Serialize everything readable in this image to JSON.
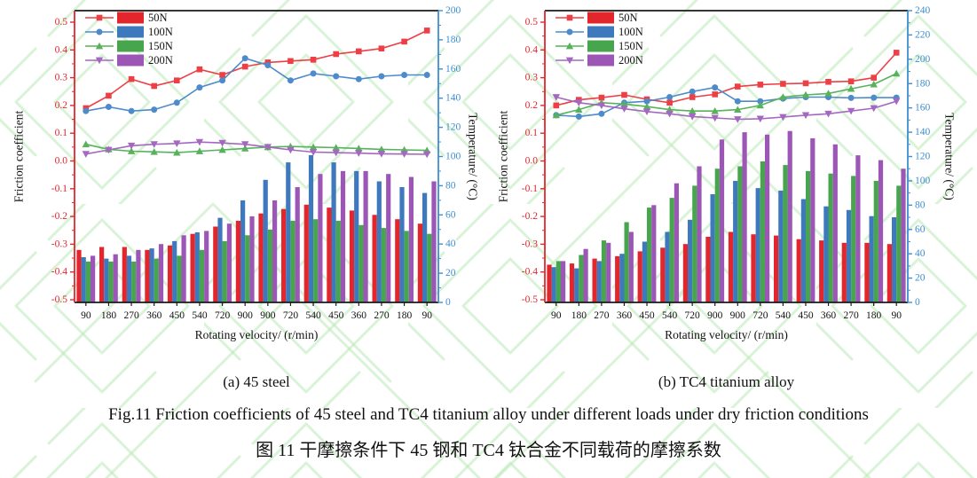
{
  "figure": {
    "panel_a_caption": "(a) 45 steel",
    "panel_b_caption": "(b) TC4 titanium alloy",
    "caption_english": "Fig.11 Friction coefficients of 45 steel and TC4 titanium alloy under different loads under dry friction conditions",
    "caption_chinese": "图 11  干摩擦条件下 45 钢和 TC4 钛合金不同载荷的摩擦系数"
  },
  "colors": {
    "load_50N": "#e2262c",
    "load_100N": "#3e79bd",
    "load_150N": "#47a64d",
    "load_200N": "#9c57b6",
    "line_50N": "#ed3f45",
    "line_100N": "#4e8bcb",
    "line_150N": "#57b25c",
    "line_200N": "#a468c0",
    "left_axis": "#e2262c",
    "right_axis": "#3e8ed0",
    "frame": "#1a1a1a",
    "tick_text": "#111111",
    "watermark": "#b7e9b2"
  },
  "chart_data": [
    {
      "id": "45-steel",
      "type": "line+bar",
      "panel_label": "(a) 45 steel",
      "xlabel": "Rotating velocity/ (r/min)",
      "ylabel_left": "Friction coefficient",
      "ylabel_right": "Temperature/ (°C)",
      "x_categories": [
        "90",
        "180",
        "270",
        "360",
        "450",
        "540",
        "720",
        "900",
        "900",
        "720",
        "540",
        "450",
        "360",
        "270",
        "180",
        "90"
      ],
      "ylim_left": [
        -0.5,
        0.5
      ],
      "yticks_left": [
        "0.5",
        "0.4",
        "0.3",
        "0.2",
        "0.1",
        "0.0",
        "-0.1",
        "-0.2",
        "-0.3",
        "-0.4",
        "-0.5"
      ],
      "ylim_right": [
        0,
        200
      ],
      "yticks_right": [
        0,
        20,
        40,
        60,
        80,
        100,
        120,
        140,
        160,
        180,
        200
      ],
      "legend": [
        "50N",
        "100N",
        "150N",
        "200N"
      ],
      "legend_position": "top-left",
      "line_series_friction": [
        {
          "name": "50N",
          "marker": "square",
          "values": [
            0.19,
            0.235,
            0.295,
            0.27,
            0.29,
            0.33,
            0.31,
            0.34,
            0.355,
            0.36,
            0.365,
            0.385,
            0.395,
            0.405,
            0.43,
            0.47
          ]
        },
        {
          "name": "100N",
          "marker": "circle",
          "values": [
            0.18,
            0.195,
            0.18,
            0.185,
            0.21,
            0.265,
            0.29,
            0.37,
            0.345,
            0.29,
            0.315,
            0.305,
            0.295,
            0.305,
            0.31,
            0.31
          ]
        },
        {
          "name": "150N",
          "marker": "triangle-up",
          "values": [
            0.06,
            0.042,
            0.035,
            0.033,
            0.03,
            0.035,
            0.04,
            0.045,
            0.05,
            0.052,
            0.05,
            0.048,
            0.045,
            0.042,
            0.04,
            0.038
          ]
        },
        {
          "name": "200N",
          "marker": "triangle-down",
          "values": [
            0.025,
            0.04,
            0.055,
            0.06,
            0.063,
            0.068,
            0.065,
            0.06,
            0.05,
            0.04,
            0.032,
            0.03,
            0.028,
            0.026,
            0.025,
            0.024
          ]
        }
      ],
      "bar_series_temperature": [
        {
          "name": "50N",
          "values": [
            36,
            38,
            38,
            36,
            39,
            47,
            52,
            56,
            61,
            64,
            67,
            65,
            63,
            60,
            57,
            54
          ]
        },
        {
          "name": "100N",
          "values": [
            31,
            30,
            32,
            37,
            42,
            48,
            58,
            70,
            84,
            96,
            101,
            96,
            90,
            83,
            79,
            75
          ]
        },
        {
          "name": "150N",
          "values": [
            28,
            28,
            28,
            30,
            32,
            36,
            42,
            46,
            50,
            56,
            57,
            56,
            53,
            51,
            49,
            47
          ]
        },
        {
          "name": "200N",
          "values": [
            32,
            33,
            36,
            40,
            46,
            49,
            54,
            59,
            70,
            79,
            88,
            90,
            90,
            88,
            86,
            83
          ]
        }
      ]
    },
    {
      "id": "tc4-titanium-alloy",
      "type": "line+bar",
      "panel_label": "(b) TC4 titanium alloy",
      "xlabel": "Rotating velocity/ (r/min)",
      "ylabel_left": "Friction coefficient",
      "ylabel_right": "Temperature/ (°C)",
      "x_categories": [
        "90",
        "180",
        "270",
        "360",
        "450",
        "540",
        "720",
        "900",
        "900",
        "720",
        "540",
        "450",
        "360",
        "270",
        "180",
        "90"
      ],
      "ylim_left": [
        -0.5,
        0.5
      ],
      "yticks_left": [
        "0.5",
        "0.4",
        "0.3",
        "0.2",
        "0.1",
        "0.0",
        "-0.1",
        "-0.2",
        "-0.3",
        "-0.4",
        "-0.5"
      ],
      "ylim_right": [
        0,
        240
      ],
      "yticks_right": [
        0,
        20,
        40,
        60,
        80,
        100,
        120,
        140,
        160,
        180,
        200,
        220,
        240
      ],
      "legend": [
        "50N",
        "100N",
        "150N",
        "200N"
      ],
      "legend_position": "top-left",
      "line_series_friction": [
        {
          "name": "50N",
          "marker": "square",
          "values": [
            0.2,
            0.22,
            0.228,
            0.238,
            0.222,
            0.21,
            0.23,
            0.24,
            0.268,
            0.275,
            0.278,
            0.28,
            0.285,
            0.287,
            0.3,
            0.39
          ]
        },
        {
          "name": "100N",
          "marker": "circle",
          "values": [
            0.165,
            0.16,
            0.17,
            0.21,
            0.215,
            0.23,
            0.25,
            0.265,
            0.215,
            0.215,
            0.225,
            0.23,
            0.23,
            0.227,
            0.228,
            0.228
          ]
        },
        {
          "name": "150N",
          "marker": "triangle-up",
          "values": [
            0.165,
            0.185,
            0.21,
            0.205,
            0.196,
            0.185,
            0.18,
            0.18,
            0.185,
            0.2,
            0.23,
            0.238,
            0.243,
            0.26,
            0.276,
            0.315
          ]
        },
        {
          "name": "200N",
          "marker": "triangle-down",
          "values": [
            0.23,
            0.21,
            0.2,
            0.188,
            0.178,
            0.17,
            0.16,
            0.155,
            0.15,
            0.152,
            0.158,
            0.165,
            0.17,
            0.18,
            0.19,
            0.215
          ]
        }
      ],
      "bar_series_temperature": [
        {
          "name": "50N",
          "values": [
            31,
            32,
            36,
            38,
            42,
            45,
            48,
            54,
            58,
            56,
            55,
            52,
            51,
            49,
            49,
            48
          ]
        },
        {
          "name": "100N",
          "values": [
            29,
            28,
            34,
            40,
            50,
            58,
            68,
            89,
            100,
            94,
            92,
            85,
            79,
            76,
            71,
            70
          ]
        },
        {
          "name": "150N",
          "values": [
            34,
            39,
            51,
            66,
            78,
            86,
            96,
            110,
            112,
            116,
            113,
            108,
            106,
            104,
            100,
            96
          ]
        },
        {
          "name": "200N",
          "values": [
            34,
            44,
            49,
            58,
            80,
            98,
            112,
            134,
            140,
            138,
            141,
            135,
            130,
            121,
            117,
            110
          ]
        }
      ]
    }
  ]
}
